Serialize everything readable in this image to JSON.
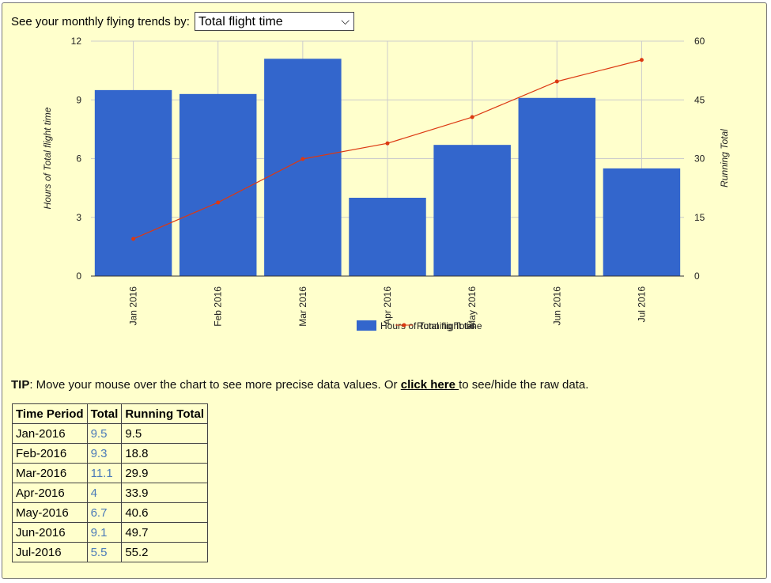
{
  "selector": {
    "label": "See your monthly flying trends by:",
    "selected": "Total flight time"
  },
  "chart_data": {
    "type": "bar",
    "categories": [
      "Jan 2016",
      "Feb 2016",
      "Mar 2016",
      "Apr 2016",
      "May 2016",
      "Jun 2016",
      "Jul 2016"
    ],
    "series": [
      {
        "name": "Hours of Total flight time",
        "type": "bar",
        "axis": "left",
        "color": "#3366cc",
        "values": [
          9.5,
          9.3,
          11.1,
          4,
          6.7,
          9.1,
          5.5
        ]
      },
      {
        "name": "Running Total",
        "type": "line",
        "axis": "right",
        "color": "#dc3912",
        "values": [
          9.5,
          18.8,
          29.9,
          33.9,
          40.6,
          49.7,
          55.2
        ]
      }
    ],
    "ylabel": "Hours of Total flight time",
    "ylabel_right": "Running Total",
    "ylim": [
      0,
      12
    ],
    "ylim_right": [
      0,
      60
    ],
    "yticks": [
      "0",
      "3",
      "6",
      "9",
      "12"
    ],
    "yticks_right": [
      "0",
      "15",
      "30",
      "45",
      "60"
    ],
    "grid": true,
    "legend_position": "bottom"
  },
  "tip": {
    "prefix": "TIP",
    "text": ": Move your mouse over the chart to see more precise data values. Or ",
    "link": "click here ",
    "suffix": "to see/hide the raw data."
  },
  "table": {
    "headers": [
      "Time Period",
      "Total",
      "Running Total"
    ],
    "rows": [
      [
        "Jan-2016",
        "9.5",
        "9.5"
      ],
      [
        "Feb-2016",
        "9.3",
        "18.8"
      ],
      [
        "Mar-2016",
        "11.1",
        "29.9"
      ],
      [
        "Apr-2016",
        "4",
        "33.9"
      ],
      [
        "May-2016",
        "6.7",
        "40.6"
      ],
      [
        "Jun-2016",
        "9.1",
        "49.7"
      ],
      [
        "Jul-2016",
        "5.5",
        "55.2"
      ]
    ]
  }
}
